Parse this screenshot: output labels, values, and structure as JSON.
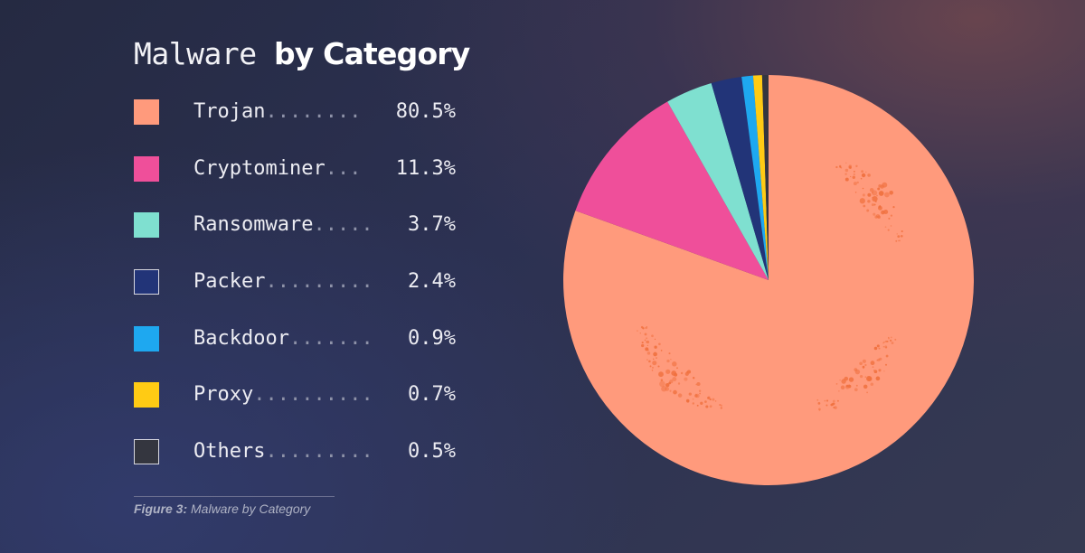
{
  "header": {
    "title_light": "Malware",
    "title_bold": "by Category"
  },
  "legend": {
    "items": [
      {
        "label": "Trojan",
        "dots": "........",
        "value": "80.5%",
        "color": "#ff9a7c"
      },
      {
        "label": "Cryptominer",
        "dots": "...",
        "value": "11.3%",
        "color": "#ef4f9a"
      },
      {
        "label": "Ransomware",
        "dots": ".....",
        "value": "3.7%",
        "color": "#7fe0d0"
      },
      {
        "label": "Packer",
        "dots": ".........",
        "value": "2.4%",
        "color": "#223478"
      },
      {
        "label": "Backdoor",
        "dots": ".......",
        "value": "0.9%",
        "color": "#1ea8f0"
      },
      {
        "label": "Proxy",
        "dots": "..........",
        "value": "0.7%",
        "color": "#ffcb14"
      },
      {
        "label": "Others",
        "dots": ".........",
        "value": "0.5%",
        "color": "#34363f"
      }
    ]
  },
  "caption": {
    "label": "Figure 3:",
    "text": "Malware by Category"
  },
  "chart_data": {
    "type": "pie",
    "title": "Malware by Category",
    "start_angle": "top, clockwise",
    "categories": [
      "Trojan",
      "Cryptominer",
      "Ransomware",
      "Packer",
      "Backdoor",
      "Proxy",
      "Others"
    ],
    "values": [
      80.5,
      11.3,
      3.7,
      2.4,
      0.9,
      0.7,
      0.5
    ],
    "unit": "%",
    "colors": [
      "#ff9a7c",
      "#ef4f9a",
      "#7fe0d0",
      "#223478",
      "#1ea8f0",
      "#ffcb14",
      "#34363f"
    ],
    "legend": "left"
  }
}
